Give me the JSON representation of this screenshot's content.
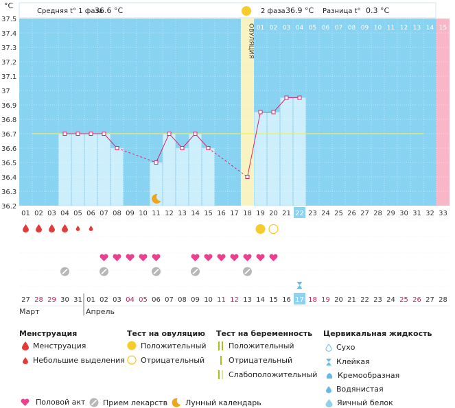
{
  "header": {
    "unit": "°C",
    "phase1_label": "Средняя t° 1 фаза",
    "phase1_value": "36.6 °C",
    "phase2_label": "2 фаза",
    "phase2_value": "36.9 °C",
    "diff_label": "Разница t°",
    "diff_value": "0.3 °C",
    "ovulation_label": "ОВУЛЯЦИЯ"
  },
  "colors": {
    "sky": "#87d3f1",
    "bar": "#cdeefb",
    "ovulation_band": "#f8f3c0",
    "pink_col": "#f9b6c8",
    "line": "#d6286b",
    "coverline": "#f0f060",
    "heart": "#ee3f8f",
    "drop": "#e23b3b",
    "pill": "#b7b7b7",
    "moon": "#f0a417",
    "test_pos": "#f5cc2a",
    "highlight": "#8fd2f0"
  },
  "chart_data": {
    "type": "line",
    "title": "",
    "ylabel": "°C",
    "ylim": [
      36.2,
      37.5
    ],
    "yticks": [
      "36.2",
      "36.3",
      "36.4",
      "36.5",
      "36.6",
      "36.7",
      "36.8",
      "36.9",
      "37",
      "37.1",
      "37.2",
      "37.3",
      "37.4",
      "37.5"
    ],
    "cycle_days": [
      "01",
      "02",
      "03",
      "04",
      "05",
      "06",
      "07",
      "08",
      "09",
      "10",
      "11",
      "12",
      "13",
      "14",
      "15",
      "16",
      "17",
      "18",
      "19",
      "20",
      "21",
      "22",
      "23",
      "24",
      "25",
      "26",
      "27",
      "28",
      "29",
      "30",
      "31",
      "32",
      "33"
    ],
    "phase2_days": [
      "01",
      "02",
      "03",
      "04",
      "05",
      "06",
      "07",
      "08",
      "09",
      "10",
      "11",
      "12",
      "13",
      "14",
      "15"
    ],
    "ovulation_day": 18,
    "highlight_day": 22,
    "coverline": 36.7,
    "series": [
      {
        "values": [
          null,
          null,
          null,
          36.7,
          36.7,
          36.7,
          36.7,
          36.6,
          null,
          null,
          36.5,
          36.7,
          36.6,
          36.7,
          36.6,
          null,
          null,
          36.4,
          36.85,
          36.85,
          36.95,
          36.95,
          null,
          null,
          null,
          null,
          null,
          null,
          null,
          null,
          null,
          null,
          null
        ]
      }
    ],
    "dates": [
      "27",
      "28",
      "29",
      "30",
      "31",
      "01",
      "02",
      "03",
      "04",
      "05",
      "06",
      "07",
      "08",
      "09",
      "10",
      "11",
      "12",
      "13",
      "14",
      "15",
      "16",
      "17",
      "18",
      "19",
      "20",
      "21",
      "22",
      "23",
      "24",
      "25",
      "26",
      "27",
      "28"
    ],
    "date_red": [
      2,
      3,
      9,
      10,
      16,
      17,
      23,
      24,
      30,
      31
    ],
    "months": [
      "Март",
      "Апрель"
    ],
    "markers": {
      "menstruation_big": [
        1,
        2,
        3,
        4
      ],
      "menstruation_small": [
        5,
        6
      ],
      "ovulation_test_positive": [
        19
      ],
      "ovulation_test_negative": [
        20
      ],
      "intercourse": [
        7,
        8,
        9,
        10,
        11,
        14,
        15,
        16,
        17,
        18,
        19,
        20
      ],
      "medication": [
        4,
        7,
        11,
        14,
        18
      ],
      "moon": [
        11
      ],
      "cervical_sticky": [
        22
      ]
    }
  },
  "legend": {
    "menstruation_title": "Менструация",
    "menstruation_items": [
      "Менструация",
      "Небольшие выделения"
    ],
    "ovulation_test_title": "Тест на овуляцию",
    "ovulation_test_items": [
      "Положительный",
      "Отрицательный"
    ],
    "pregnancy_test_title": "Тест на беременность",
    "pregnancy_test_items": [
      "Положительный",
      "Отрицательный",
      "Слабоположительный"
    ],
    "cervical_title": "Цервикальная жидкость",
    "cervical_items": [
      "Сухо",
      "Клейкая",
      "Кремообразная",
      "Водянистая",
      "Яичный белок"
    ],
    "bottom_items": [
      "Половой акт",
      "Прием лекарств",
      "Лунный календарь"
    ]
  }
}
